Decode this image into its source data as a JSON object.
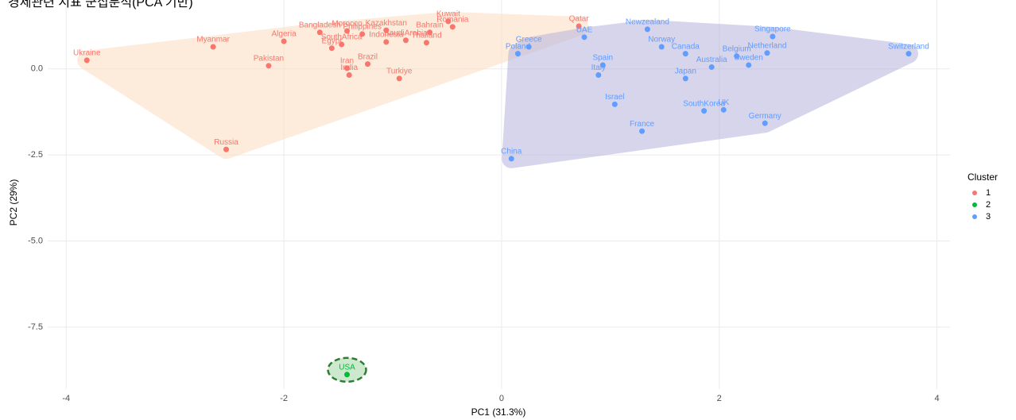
{
  "chart_data": {
    "type": "scatter",
    "title": "경제관련 지표 군집분석(PCA 기반)",
    "xlabel": "PC1 (31.3%)",
    "ylabel": "PC2 (29%)",
    "legend_title": "Cluster",
    "legend": "right",
    "grid": true,
    "xlim": [
      -4.17,
      4.12
    ],
    "ylim": [
      -9.3,
      2.0
    ],
    "xticks": [
      -4,
      -2,
      0,
      2,
      4
    ],
    "yticks": [
      {
        "value": 0,
        "label": "0.0"
      },
      {
        "value": -2.5,
        "label": "-2.5"
      },
      {
        "value": -5,
        "label": "-5.0"
      },
      {
        "value": -7.5,
        "label": "-7.5"
      }
    ],
    "series": [
      {
        "name": "1",
        "color": "#F8766D",
        "hull_color": "#FDDCBF",
        "labels": [
          "Ukraine",
          "Myanmar",
          "Algeria",
          "Pakistan",
          "Russia",
          "Bangladesh",
          "Morocco",
          "Kazakhstan",
          "Philippines",
          "Egypt",
          "SouthAfrica",
          "Indonesia",
          "SaudiArabia",
          "Thailand",
          "Bahrain",
          "Kuwait",
          "Romania",
          "Iran",
          "India",
          "Brazil",
          "Turkiye",
          "Qatar"
        ],
        "x": [
          -3.81,
          -2.65,
          -2.0,
          -2.14,
          -2.53,
          -1.67,
          -1.42,
          -1.06,
          -1.28,
          -1.56,
          -1.47,
          -1.06,
          -0.88,
          -0.69,
          -0.66,
          -0.49,
          -0.45,
          -1.42,
          -1.4,
          -1.23,
          -0.94,
          0.71
        ],
        "values": [
          0.25,
          0.64,
          0.8,
          0.09,
          -2.34,
          1.06,
          1.1,
          1.12,
          1.01,
          0.6,
          0.71,
          0.78,
          0.83,
          0.76,
          1.06,
          1.38,
          1.22,
          0.02,
          -0.18,
          0.14,
          -0.28,
          1.24
        ]
      },
      {
        "name": "2",
        "color": "#00BA38",
        "hull_color": "#9BD39B",
        "labels": [
          "USA"
        ],
        "x": [
          -1.42
        ],
        "values": [
          -8.88
        ]
      },
      {
        "name": "3",
        "color": "#619CFF",
        "hull_color": "#B6B3DD",
        "labels": [
          "Greece",
          "Poland",
          "UAE",
          "Newzealand",
          "Norway",
          "Canada",
          "Singapore",
          "Netherland",
          "Belgium",
          "Sweden",
          "Australia",
          "Switzerland",
          "Spain",
          "Italy",
          "Japan",
          "Israel",
          "SouthKorea",
          "UK",
          "Germany",
          "France",
          "China"
        ],
        "x": [
          0.25,
          0.15,
          0.76,
          1.34,
          1.47,
          1.69,
          2.49,
          2.44,
          2.16,
          2.27,
          1.93,
          3.74,
          0.93,
          0.89,
          1.69,
          1.04,
          1.86,
          2.04,
          2.42,
          1.29,
          0.09
        ],
        "values": [
          0.64,
          0.44,
          0.92,
          1.15,
          0.64,
          0.44,
          0.94,
          0.46,
          0.37,
          0.11,
          0.05,
          0.44,
          0.11,
          -0.18,
          -0.28,
          -1.03,
          -1.22,
          -1.19,
          -1.58,
          -1.81,
          -2.61
        ]
      }
    ]
  }
}
